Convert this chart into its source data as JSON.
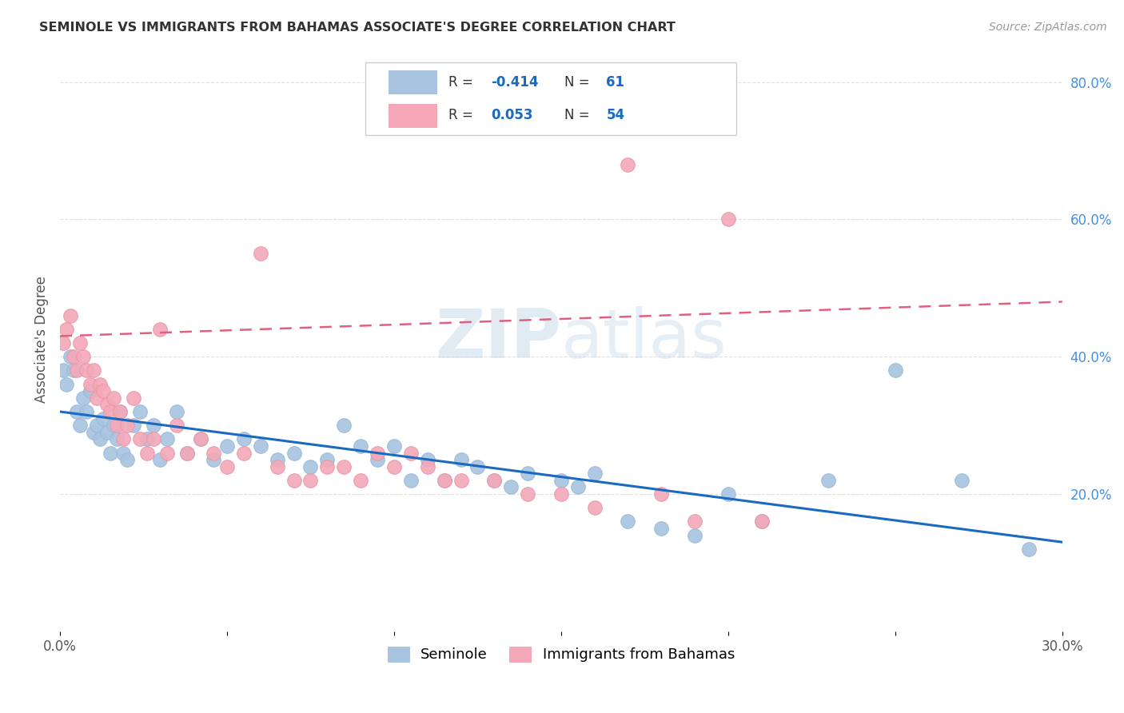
{
  "title": "SEMINOLE VS IMMIGRANTS FROM BAHAMAS ASSOCIATE'S DEGREE CORRELATION CHART",
  "source": "Source: ZipAtlas.com",
  "ylabel": "Associate's Degree",
  "watermark_zip": "ZIP",
  "watermark_atlas": "atlas",
  "x_min": 0.0,
  "x_max": 0.3,
  "y_min": 0.0,
  "y_max": 0.85,
  "y_ticks_right": [
    0.2,
    0.4,
    0.6,
    0.8
  ],
  "y_tick_labels_right": [
    "20.0%",
    "40.0%",
    "60.0%",
    "80.0%"
  ],
  "seminole_color": "#a8c4e0",
  "immigrants_color": "#f4a8b8",
  "seminole_line_color": "#1a6bbf",
  "immigrants_line_color": "#e06080",
  "seminole_R": -0.414,
  "seminole_N": 61,
  "immigrants_R": 0.053,
  "immigrants_N": 54,
  "seminole_x": [
    0.001,
    0.002,
    0.003,
    0.004,
    0.005,
    0.006,
    0.007,
    0.008,
    0.009,
    0.01,
    0.011,
    0.012,
    0.013,
    0.014,
    0.015,
    0.016,
    0.017,
    0.018,
    0.019,
    0.02,
    0.022,
    0.024,
    0.026,
    0.028,
    0.03,
    0.032,
    0.035,
    0.038,
    0.042,
    0.046,
    0.05,
    0.055,
    0.06,
    0.065,
    0.07,
    0.075,
    0.08,
    0.085,
    0.09,
    0.095,
    0.1,
    0.105,
    0.11,
    0.115,
    0.12,
    0.125,
    0.13,
    0.135,
    0.14,
    0.15,
    0.155,
    0.16,
    0.17,
    0.18,
    0.19,
    0.2,
    0.21,
    0.23,
    0.25,
    0.27,
    0.29
  ],
  "seminole_y": [
    0.38,
    0.36,
    0.4,
    0.38,
    0.32,
    0.3,
    0.34,
    0.32,
    0.35,
    0.29,
    0.3,
    0.28,
    0.31,
    0.29,
    0.26,
    0.3,
    0.28,
    0.32,
    0.26,
    0.25,
    0.3,
    0.32,
    0.28,
    0.3,
    0.25,
    0.28,
    0.32,
    0.26,
    0.28,
    0.25,
    0.27,
    0.28,
    0.27,
    0.25,
    0.26,
    0.24,
    0.25,
    0.3,
    0.27,
    0.25,
    0.27,
    0.22,
    0.25,
    0.22,
    0.25,
    0.24,
    0.22,
    0.21,
    0.23,
    0.22,
    0.21,
    0.23,
    0.16,
    0.15,
    0.14,
    0.2,
    0.16,
    0.22,
    0.38,
    0.22,
    0.12
  ],
  "immigrants_x": [
    0.001,
    0.002,
    0.003,
    0.004,
    0.005,
    0.006,
    0.007,
    0.008,
    0.009,
    0.01,
    0.011,
    0.012,
    0.013,
    0.014,
    0.015,
    0.016,
    0.017,
    0.018,
    0.019,
    0.02,
    0.022,
    0.024,
    0.026,
    0.028,
    0.03,
    0.032,
    0.035,
    0.038,
    0.042,
    0.046,
    0.05,
    0.055,
    0.06,
    0.065,
    0.07,
    0.075,
    0.08,
    0.085,
    0.09,
    0.095,
    0.1,
    0.105,
    0.11,
    0.115,
    0.12,
    0.13,
    0.14,
    0.15,
    0.16,
    0.17,
    0.18,
    0.19,
    0.2,
    0.21
  ],
  "immigrants_y": [
    0.42,
    0.44,
    0.46,
    0.4,
    0.38,
    0.42,
    0.4,
    0.38,
    0.36,
    0.38,
    0.34,
    0.36,
    0.35,
    0.33,
    0.32,
    0.34,
    0.3,
    0.32,
    0.28,
    0.3,
    0.34,
    0.28,
    0.26,
    0.28,
    0.44,
    0.26,
    0.3,
    0.26,
    0.28,
    0.26,
    0.24,
    0.26,
    0.55,
    0.24,
    0.22,
    0.22,
    0.24,
    0.24,
    0.22,
    0.26,
    0.24,
    0.26,
    0.24,
    0.22,
    0.22,
    0.22,
    0.2,
    0.2,
    0.18,
    0.68,
    0.2,
    0.16,
    0.6,
    0.16
  ],
  "legend_seminole_label": "Seminole",
  "legend_immigrants_label": "Immigrants from Bahamas",
  "background_color": "#ffffff",
  "grid_color": "#e0e0e0"
}
